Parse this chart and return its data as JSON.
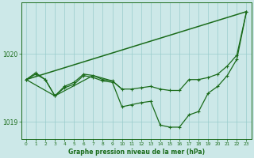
{
  "background_color": "#cce8e8",
  "grid_color": "#99cccc",
  "line_color": "#1a6b1a",
  "title": "Graphe pression niveau de la mer (hPa)",
  "ylim": [
    1018.75,
    1020.75
  ],
  "xlim": [
    -0.5,
    23.5
  ],
  "yticks": [
    1019,
    1020
  ],
  "xticks": [
    0,
    1,
    2,
    3,
    4,
    5,
    6,
    7,
    8,
    9,
    10,
    11,
    12,
    13,
    14,
    15,
    16,
    17,
    18,
    19,
    20,
    21,
    22,
    23
  ],
  "series": [
    {
      "x": [
        0,
        1,
        2,
        3,
        4,
        5,
        6,
        7,
        8,
        9,
        10,
        11,
        12,
        13,
        14,
        15,
        16,
        17,
        18,
        19,
        20,
        21,
        22,
        23
      ],
      "y": [
        1019.62,
        1019.72,
        1019.62,
        1019.38,
        1019.5,
        1019.55,
        1019.68,
        1019.65,
        1019.6,
        1019.58,
        1019.22,
        1019.25,
        1019.28,
        1019.3,
        1018.95,
        1018.92,
        1018.92,
        1019.1,
        1019.15,
        1019.42,
        1019.52,
        1019.68,
        1019.92,
        1020.62
      ],
      "marker": "+",
      "lw": 0.9,
      "ms": 3.5
    },
    {
      "x": [
        0,
        1,
        2,
        3,
        4,
        5,
        6,
        7,
        8,
        9,
        10,
        11,
        12,
        13,
        14,
        15,
        16,
        17,
        18,
        19,
        20,
        21,
        22,
        23
      ],
      "y": [
        1019.62,
        1019.7,
        1019.62,
        1019.38,
        1019.52,
        1019.58,
        1019.7,
        1019.68,
        1019.62,
        1019.6,
        1019.48,
        1019.48,
        1019.5,
        1019.52,
        1019.48,
        1019.46,
        1019.46,
        1019.62,
        1019.62,
        1019.65,
        1019.7,
        1019.82,
        1019.98,
        1020.62
      ],
      "marker": "+",
      "lw": 0.9,
      "ms": 3.5
    },
    {
      "x": [
        0,
        23
      ],
      "y": [
        1019.62,
        1020.62
      ],
      "marker": "none",
      "lw": 1.1,
      "ms": 0
    },
    {
      "x": [
        0,
        3,
        7,
        9,
        10
      ],
      "y": [
        1019.62,
        1019.38,
        1019.68,
        1019.6,
        1019.48
      ],
      "marker": "none",
      "lw": 0.9,
      "ms": 0
    }
  ]
}
